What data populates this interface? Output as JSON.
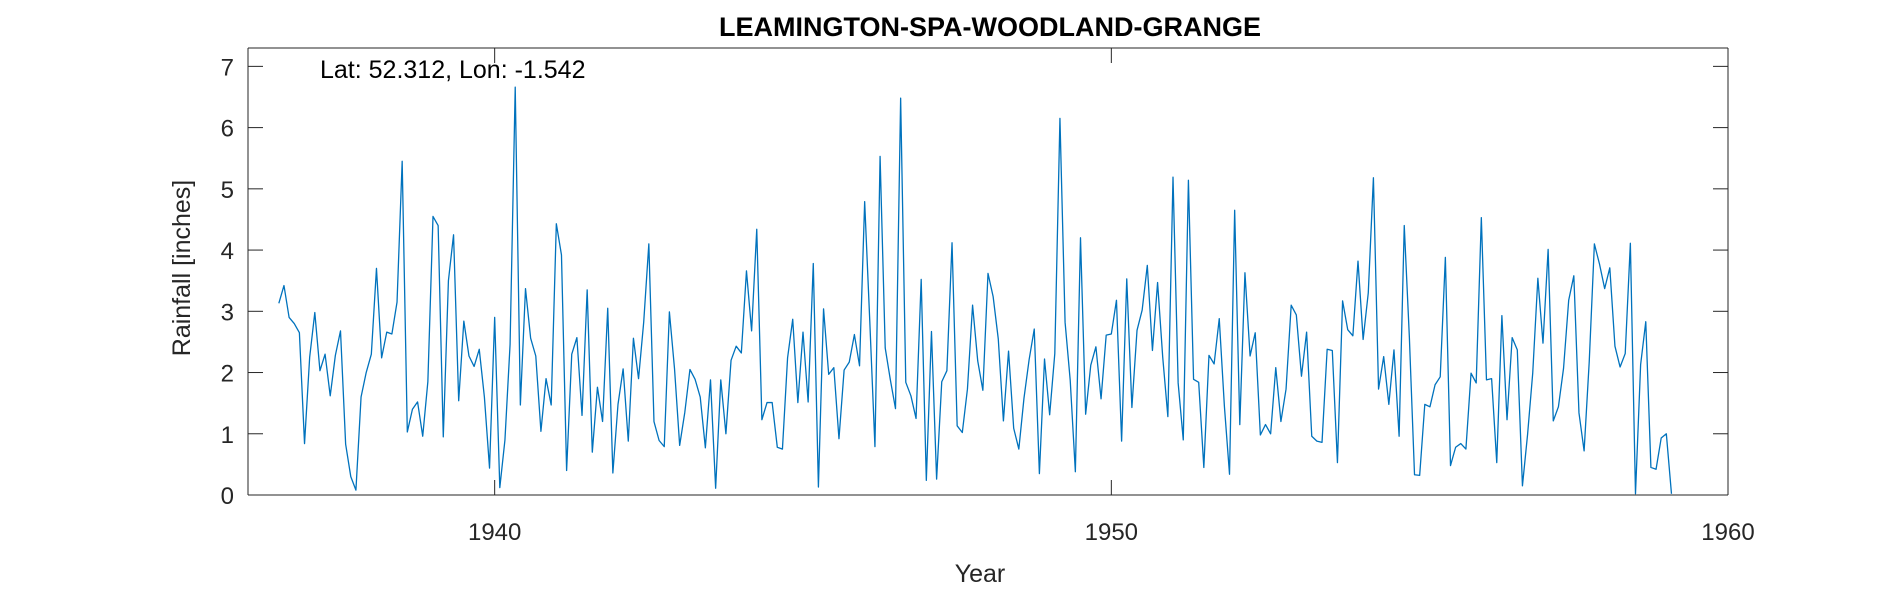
{
  "chart_data": {
    "type": "line",
    "title": "LEAMINGTON-SPA-WOODLAND-GRANGE",
    "annotation": "Lat: 52.312, Lon: -1.542",
    "xlabel": "Year",
    "ylabel": "Rainfall [inches]",
    "xlim": [
      1936,
      1960
    ],
    "ylim": [
      0,
      7.3
    ],
    "xticks": [
      1940,
      1950,
      1960
    ],
    "yticks": [
      0,
      1,
      2,
      3,
      4,
      5,
      6,
      7
    ],
    "grid": false,
    "line_color": "#0072BD",
    "series": [
      {
        "x_start": 1936.5,
        "x_step": 0.083333,
        "values": [
          3.13,
          3.42,
          2.9,
          2.8,
          2.65,
          0.84,
          2.25,
          2.98,
          2.03,
          2.3,
          1.62,
          2.28,
          2.68,
          0.83,
          0.3,
          0.08,
          1.6,
          2.0,
          2.3,
          3.7,
          2.24,
          2.66,
          2.63,
          3.15,
          5.45,
          1.03,
          1.4,
          1.52,
          0.96,
          1.85,
          4.55,
          4.4,
          0.95,
          3.5,
          4.25,
          1.54,
          2.84,
          2.27,
          2.1,
          2.38,
          1.6,
          0.44,
          2.9,
          0.12,
          0.9,
          2.46,
          6.66,
          1.47,
          3.37,
          2.56,
          2.27,
          1.04,
          1.9,
          1.47,
          4.43,
          3.92,
          0.4,
          2.3,
          2.57,
          1.3,
          3.35,
          0.7,
          1.76,
          1.2,
          3.05,
          0.36,
          1.48,
          2.06,
          0.88,
          2.56,
          1.9,
          2.82,
          4.1,
          1.2,
          0.89,
          0.79,
          2.99,
          2.06,
          0.81,
          1.35,
          2.05,
          1.89,
          1.6,
          0.77,
          1.88,
          0.11,
          1.88,
          1.0,
          2.2,
          2.43,
          2.32,
          3.66,
          2.68,
          4.34,
          1.23,
          1.51,
          1.51,
          0.78,
          0.75,
          2.24,
          2.87,
          1.51,
          2.66,
          1.52,
          3.78,
          0.13,
          3.04,
          1.97,
          2.08,
          0.92,
          2.04,
          2.17,
          2.62,
          2.11,
          4.79,
          2.83,
          0.79,
          5.53,
          2.4,
          1.88,
          1.41,
          6.48,
          1.84,
          1.62,
          1.25,
          3.52,
          0.24,
          2.67,
          0.26,
          1.85,
          2.03,
          4.12,
          1.13,
          1.02,
          1.73,
          3.1,
          2.19,
          1.71,
          3.62,
          3.24,
          2.55,
          1.21,
          2.35,
          1.09,
          0.75,
          1.58,
          2.21,
          2.71,
          0.35,
          2.22,
          1.31,
          2.31,
          6.15,
          2.82,
          1.87,
          0.38,
          4.2,
          1.32,
          2.12,
          2.42,
          1.57,
          2.61,
          2.63,
          3.18,
          0.88,
          3.53,
          1.43,
          2.69,
          3.02,
          3.75,
          2.36,
          3.47,
          2.25,
          1.28,
          5.19,
          1.83,
          0.9,
          5.14,
          1.89,
          1.84,
          0.45,
          2.28,
          2.14,
          2.88,
          1.45,
          0.34,
          4.65,
          1.15,
          3.63,
          2.27,
          2.65,
          0.98,
          1.15,
          1.0,
          2.08,
          1.2,
          1.73,
          3.1,
          2.94,
          1.94,
          2.66,
          0.96,
          0.88,
          0.86,
          2.38,
          2.36,
          0.53,
          3.17,
          2.7,
          2.6,
          3.82,
          2.54,
          3.3,
          5.18,
          1.73,
          2.26,
          1.48,
          2.37,
          0.96,
          4.4,
          2.57,
          0.33,
          0.32,
          1.48,
          1.44,
          1.8,
          1.93,
          3.88,
          0.48,
          0.78,
          0.84,
          0.75,
          1.99,
          1.83,
          4.53,
          1.88,
          1.9,
          0.53,
          2.93,
          1.23,
          2.57,
          2.37,
          0.15,
          0.99,
          1.99,
          3.54,
          2.48,
          4.01,
          1.21,
          1.44,
          2.07,
          3.18,
          3.58,
          1.34,
          0.72,
          2.18,
          4.1,
          3.77,
          3.37,
          3.71,
          2.43,
          2.09,
          2.31,
          4.11,
          0.02,
          2.13,
          2.83,
          0.45,
          0.42,
          0.93,
          1.0,
          0.02
        ]
      }
    ]
  }
}
